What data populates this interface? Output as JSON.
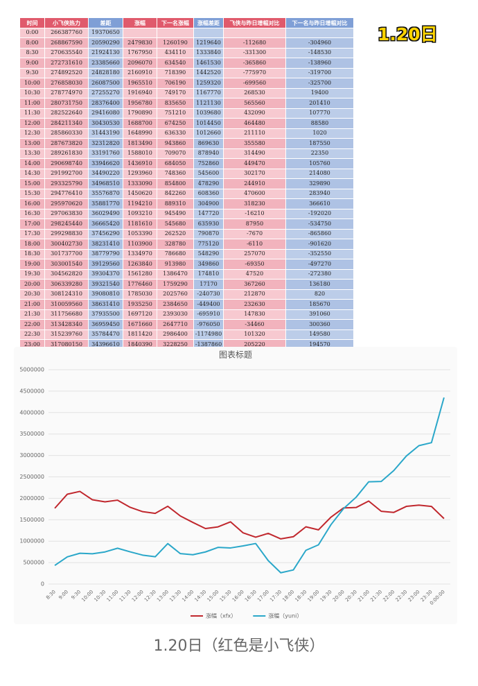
{
  "badge": "1.20日",
  "caption": "1.20日（红色是小飞侠）",
  "table": {
    "columns": [
      "时间",
      "小飞侠热力",
      "差距",
      "涨幅",
      "下一名涨幅",
      "涨幅差距",
      "飞侠与昨日增幅对比",
      "下一名与昨日增幅对比"
    ],
    "rows": [
      [
        "0:00",
        266387760,
        19370650
      ],
      [
        "8:00",
        268867590,
        20590290,
        2479830,
        1260190,
        1219640,
        -112680,
        -304960
      ],
      [
        "8:30",
        270635540,
        21924130,
        1767950,
        434110,
        1333840,
        -331300,
        -148530
      ],
      [
        "9:00",
        272731610,
        23385660,
        2096070,
        634540,
        1461530,
        -365860,
        -138960
      ],
      [
        "9:30",
        274892520,
        24828180,
        2160910,
        718390,
        1442520,
        -775970,
        -319700
      ],
      [
        "10:00",
        276858030,
        26087500,
        1965510,
        706190,
        1259320,
        -699560,
        -325700
      ],
      [
        "10:30",
        278774970,
        27255270,
        1916940,
        749170,
        1167770,
        268530,
        19400
      ],
      [
        "11:00",
        280731750,
        28376400,
        1956780,
        835650,
        1121130,
        565560,
        201410
      ],
      [
        "11:30",
        282522640,
        29416080,
        1790890,
        751210,
        1039680,
        432090,
        107770
      ],
      [
        "12:00",
        284211340,
        30430530,
        1688700,
        674250,
        1014450,
        464480,
        88580
      ],
      [
        "12:30",
        285860330,
        31443190,
        1648990,
        636330,
        1012660,
        211110,
        1020
      ],
      [
        "13:00",
        287673820,
        32312820,
        1813490,
        943860,
        869630,
        355580,
        187550
      ],
      [
        "13:30",
        289261830,
        33191760,
        1588010,
        709070,
        878940,
        314490,
        22350
      ],
      [
        "14:00",
        290698740,
        33946620,
        1436910,
        684050,
        752860,
        449470,
        105760
      ],
      [
        "14:30",
        291992700,
        34490220,
        1293960,
        748360,
        545600,
        302170,
        214080
      ],
      [
        "15:00",
        293325790,
        34968510,
        1333090,
        854800,
        478290,
        244910,
        329890
      ],
      [
        "15:30",
        294776410,
        35576870,
        1450620,
        842260,
        608360,
        470600,
        283940
      ],
      [
        "16:00",
        295970620,
        35881770,
        1194210,
        889310,
        304900,
        318230,
        366610
      ],
      [
        "16:30",
        297063830,
        36029490,
        1093210,
        945490,
        147720,
        -16210,
        -192020
      ],
      [
        "17:00",
        298245440,
        36665420,
        1181610,
        545680,
        635930,
        87950,
        -534750
      ],
      [
        "17:30",
        299298830,
        37456290,
        1053390,
        262520,
        790870,
        -7670,
        -865860
      ],
      [
        "18:00",
        300402730,
        38231410,
        1103900,
        328780,
        775120,
        -6110,
        -901620
      ],
      [
        "18:30",
        301737700,
        38779790,
        1334970,
        786680,
        548290,
        257070,
        -352550
      ],
      [
        "19:00",
        303001540,
        39129560,
        1263840,
        913980,
        349860,
        -69350,
        -497270
      ],
      [
        "19:30",
        304562820,
        39304370,
        1561280,
        1386470,
        174810,
        47520,
        -272380
      ],
      [
        "20:00",
        306339280,
        39321540,
        1776460,
        1759290,
        17170,
        367260,
        136180
      ],
      [
        "20:30",
        308124310,
        39080810,
        1785030,
        2025760,
        -240730,
        212870,
        820
      ],
      [
        "21:00",
        310059560,
        38631410,
        1935250,
        2384650,
        -449400,
        232630,
        185670
      ],
      [
        "21:30",
        311756680,
        37935500,
        1697120,
        2393030,
        -695910,
        147830,
        391060
      ],
      [
        "22:00",
        313428340,
        36959450,
        1671660,
        2647710,
        -976050,
        -34460,
        300360
      ],
      [
        "22:30",
        315239760,
        35784470,
        1811420,
        2986400,
        -1174980,
        101320,
        149580
      ],
      [
        "23:00",
        317080150,
        34396610,
        1840390,
        3228250,
        -1387860,
        205220,
        194570
      ],
      [
        "23:30",
        318890880,
        32909730,
        1810730,
        3297610,
        -1486880,
        91180,
        -180960
      ],
      [
        "0:00",
        320417750,
        30085580,
        1526870,
        4351020,
        -2824150,
        61020,
        1718940
      ]
    ]
  },
  "chart_data": {
    "type": "line",
    "title": "图表标题",
    "categories": [
      "8:30",
      "9:00",
      "9:30",
      "10:00",
      "10:30",
      "11:00",
      "11:30",
      "12:00",
      "12:30",
      "13:00",
      "13:30",
      "14:00",
      "14:30",
      "15:00",
      "15:30",
      "16:00",
      "16:30",
      "17:00",
      "17:30",
      "18:00",
      "18:30",
      "19:00",
      "19:30",
      "20:00",
      "20:30",
      "21:00",
      "21:30",
      "22:00",
      "22:30",
      "23:00",
      "23:30",
      "0:00:00"
    ],
    "series": [
      {
        "name": "涨幅（xfx）",
        "color": "#c0272d",
        "values": [
          1767950,
          2096070,
          2160910,
          1965510,
          1916940,
          1956780,
          1790890,
          1688700,
          1648990,
          1813490,
          1588010,
          1436910,
          1293960,
          1333090,
          1450620,
          1194210,
          1093210,
          1181610,
          1053390,
          1103900,
          1334970,
          1263840,
          1561280,
          1776460,
          1785030,
          1935250,
          1697120,
          1671660,
          1811420,
          1840390,
          1810730,
          1526870
        ]
      },
      {
        "name": "涨幅（yuni）",
        "color": "#2aa7c9",
        "values": [
          434110,
          634540,
          718390,
          706190,
          749170,
          835650,
          751210,
          674250,
          636330,
          943860,
          709070,
          684050,
          748360,
          854800,
          842260,
          889310,
          945490,
          545680,
          262520,
          328780,
          786680,
          913980,
          1386470,
          1759290,
          2025760,
          2384650,
          2393030,
          2647710,
          2986400,
          3228250,
          3297610,
          4351020
        ]
      }
    ],
    "ylim": [
      0,
      5000000
    ],
    "yticks": [
      0,
      500000,
      1000000,
      1500000,
      2000000,
      2500000,
      3000000,
      3500000,
      4000000,
      4500000,
      5000000
    ],
    "grid": true,
    "legend": "bottom"
  }
}
